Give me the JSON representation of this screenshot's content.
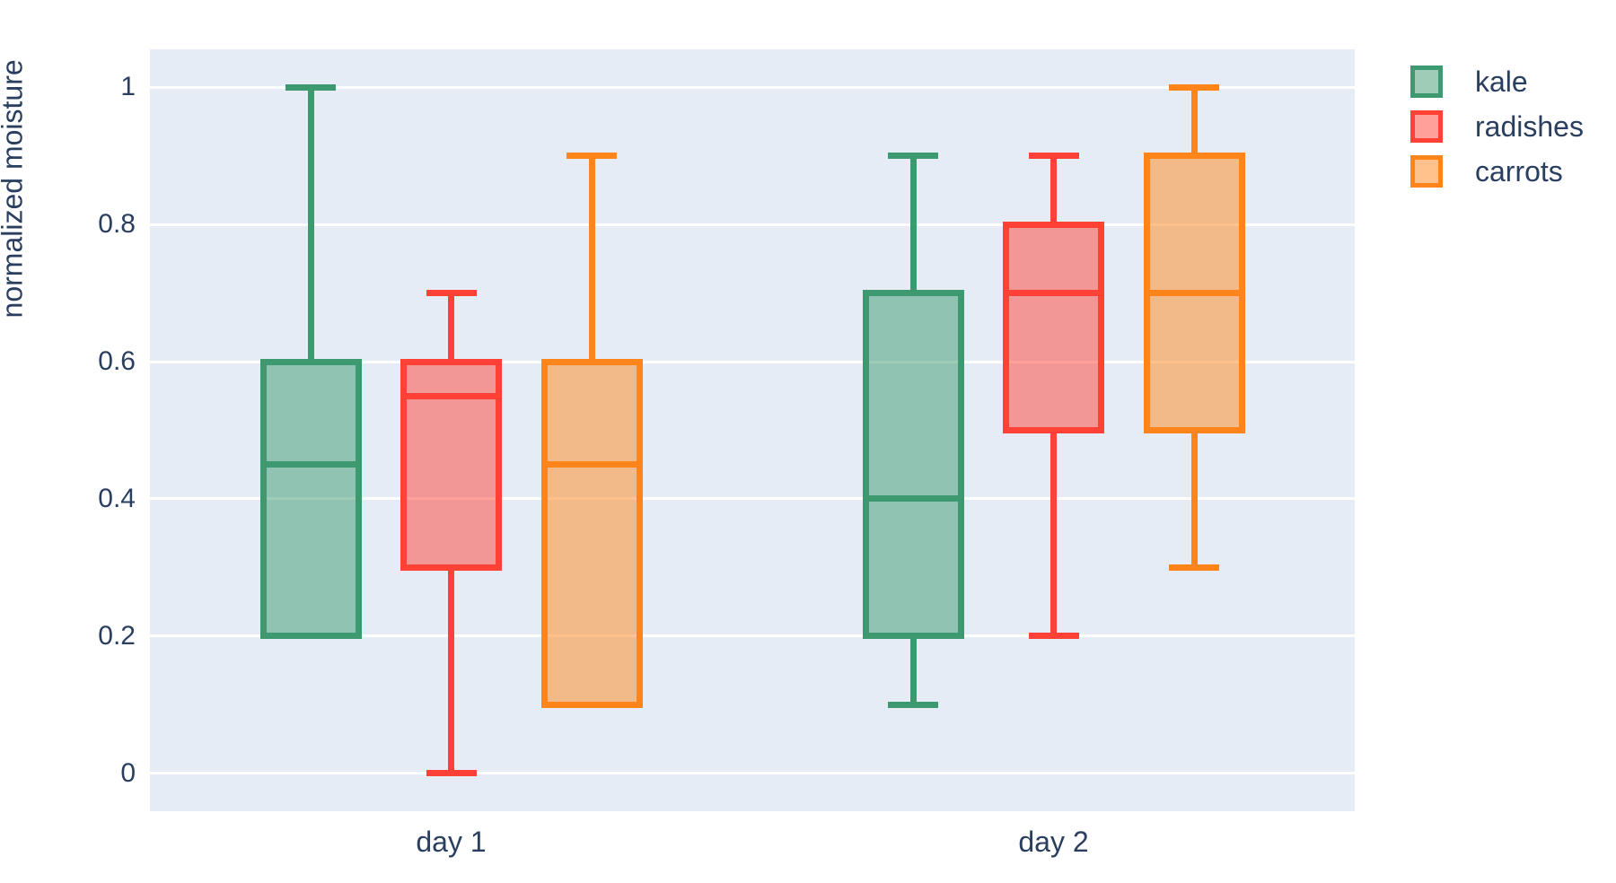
{
  "chart_data": {
    "type": "box",
    "title": "",
    "xlabel": "",
    "ylabel": "normalized moisture",
    "categories": [
      "day 1",
      "day 2"
    ],
    "yticks": [
      0,
      0.2,
      0.4,
      0.6,
      0.8,
      1
    ],
    "ytick_labels": [
      "0",
      "0.2",
      "0.4",
      "0.6",
      "0.8",
      "1"
    ],
    "ylim": [
      -0.055,
      1.055
    ],
    "grid": true,
    "boxmode": "group",
    "legend_position": "top-right-outside",
    "series": [
      {
        "name": "kale",
        "color": "#3D9970",
        "boxes": [
          {
            "category": "day 1",
            "min": 0.2,
            "q1": 0.2,
            "median": 0.45,
            "q3": 0.6,
            "max": 1.0
          },
          {
            "category": "day 2",
            "min": 0.1,
            "q1": 0.2,
            "median": 0.4,
            "q3": 0.7,
            "max": 0.9
          }
        ]
      },
      {
        "name": "radishes",
        "color": "#FF4136",
        "boxes": [
          {
            "category": "day 1",
            "min": 0.0,
            "q1": 0.3,
            "median": 0.55,
            "q3": 0.6,
            "max": 0.7
          },
          {
            "category": "day 2",
            "min": 0.2,
            "q1": 0.5,
            "median": 0.7,
            "q3": 0.8,
            "max": 0.9
          }
        ]
      },
      {
        "name": "carrots",
        "color": "#FF851B",
        "boxes": [
          {
            "category": "day 1",
            "min": 0.1,
            "q1": 0.1,
            "median": 0.45,
            "q3": 0.6,
            "max": 0.9
          },
          {
            "category": "day 2",
            "min": 0.3,
            "q1": 0.5,
            "median": 0.7,
            "q3": 0.9,
            "max": 1.0
          }
        ]
      }
    ],
    "colors": {
      "plot_background": "#E5ECF6",
      "gridline": "#FFFFFF",
      "text": "#2A3F5F",
      "box_fill_opacity": 0.5
    }
  }
}
